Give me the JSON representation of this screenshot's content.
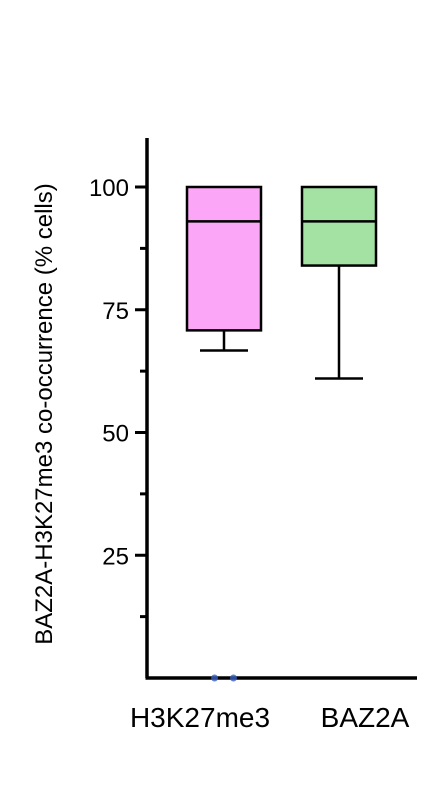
{
  "chart_data": {
    "type": "box",
    "ylabel": "BAZ2A-H3K27me3 co-occurrence (% cells)",
    "xlabel": "",
    "ylim": [
      0,
      110
    ],
    "yticks_major": [
      25,
      50,
      75,
      100
    ],
    "yticks_minor": [
      12.5,
      37.5,
      62.5,
      87.5
    ],
    "grid": false,
    "categories": [
      "H3K27me3",
      "BAZ2A"
    ],
    "boxes": [
      {
        "category": "H3K27me3",
        "whisker_low": 66.7,
        "q1": 70.8,
        "median": 93.0,
        "q3": 100,
        "whisker_high": 100,
        "color": "#fba6f6"
      },
      {
        "category": "BAZ2A",
        "whisker_low": 61.0,
        "q1": 84.0,
        "median": 93.0,
        "q3": 100,
        "whisker_high": 100,
        "color": "#a3e2a2"
      }
    ],
    "outliers": [
      {
        "category": "H3K27me3",
        "y": 0,
        "offset": -0.35,
        "color": "#3a5fbf"
      },
      {
        "category": "H3K27me3",
        "y": 0,
        "offset": 0.35,
        "color": "#3a5fbf"
      }
    ]
  }
}
